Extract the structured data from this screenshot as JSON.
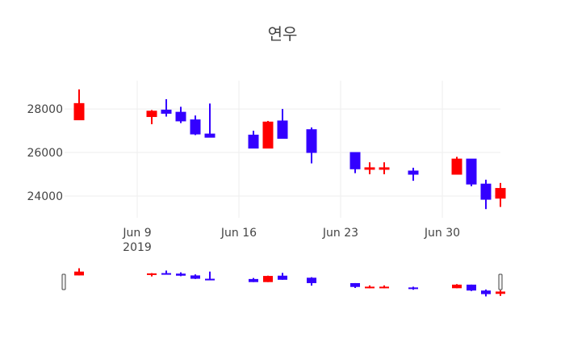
{
  "chart_data": {
    "type": "candlestick",
    "title": "연우",
    "xlabel": "",
    "ylabel": "",
    "x_ticks": [
      {
        "date": "2019-06-09",
        "label": "Jun 9",
        "sublabel": "2019"
      },
      {
        "date": "2019-06-16",
        "label": "Jun 16",
        "sublabel": ""
      },
      {
        "date": "2019-06-23",
        "label": "Jun 23",
        "sublabel": ""
      },
      {
        "date": "2019-06-30",
        "label": "Jun 30",
        "sublabel": ""
      }
    ],
    "y_ticks": [
      24000,
      26000,
      28000
    ],
    "x_range": [
      "2019-06-04",
      "2019-07-03"
    ],
    "ylim": [
      23000,
      29300
    ],
    "grid": true,
    "range_slider": true,
    "colors": {
      "increasing": "#ff0000",
      "decreasing": "#3300ff",
      "grid": "#eeeeee",
      "text": "#444444"
    },
    "candles": [
      {
        "date": "2019-06-05",
        "open": 27500,
        "high": 28900,
        "low": 27500,
        "close": 28250
      },
      {
        "date": "2019-06-10",
        "open": 27650,
        "high": 27950,
        "low": 27300,
        "close": 27900
      },
      {
        "date": "2019-06-11",
        "open": 27950,
        "high": 28450,
        "low": 27650,
        "close": 27800
      },
      {
        "date": "2019-06-12",
        "open": 27850,
        "high": 28100,
        "low": 27350,
        "close": 27450
      },
      {
        "date": "2019-06-13",
        "open": 27500,
        "high": 27700,
        "low": 26800,
        "close": 26850
      },
      {
        "date": "2019-06-14",
        "open": 26850,
        "high": 28250,
        "low": 26700,
        "close": 26700
      },
      {
        "date": "2019-06-17",
        "open": 26800,
        "high": 27000,
        "low": 26200,
        "close": 26200
      },
      {
        "date": "2019-06-18",
        "open": 26200,
        "high": 27450,
        "low": 26200,
        "close": 27400
      },
      {
        "date": "2019-06-19",
        "open": 27450,
        "high": 28000,
        "low": 26650,
        "close": 26650
      },
      {
        "date": "2019-06-21",
        "open": 27050,
        "high": 27150,
        "low": 25500,
        "close": 26000
      },
      {
        "date": "2019-06-24",
        "open": 26000,
        "high": 26000,
        "low": 25050,
        "close": 25250
      },
      {
        "date": "2019-06-25",
        "open": 25250,
        "high": 25550,
        "low": 25000,
        "close": 25300
      },
      {
        "date": "2019-06-26",
        "open": 25250,
        "high": 25550,
        "low": 25000,
        "close": 25300
      },
      {
        "date": "2019-06-28",
        "open": 25150,
        "high": 25300,
        "low": 24700,
        "close": 25000
      },
      {
        "date": "2019-07-01",
        "open": 25000,
        "high": 25800,
        "low": 25000,
        "close": 25700
      },
      {
        "date": "2019-07-02",
        "open": 25700,
        "high": 25700,
        "low": 24450,
        "close": 24550
      },
      {
        "date": "2019-07-03",
        "open": 24550,
        "high": 24750,
        "low": 23400,
        "close": 23850
      },
      {
        "date": "2019-07-04",
        "open": 23900,
        "high": 24600,
        "low": 23500,
        "close": 24350
      }
    ]
  }
}
